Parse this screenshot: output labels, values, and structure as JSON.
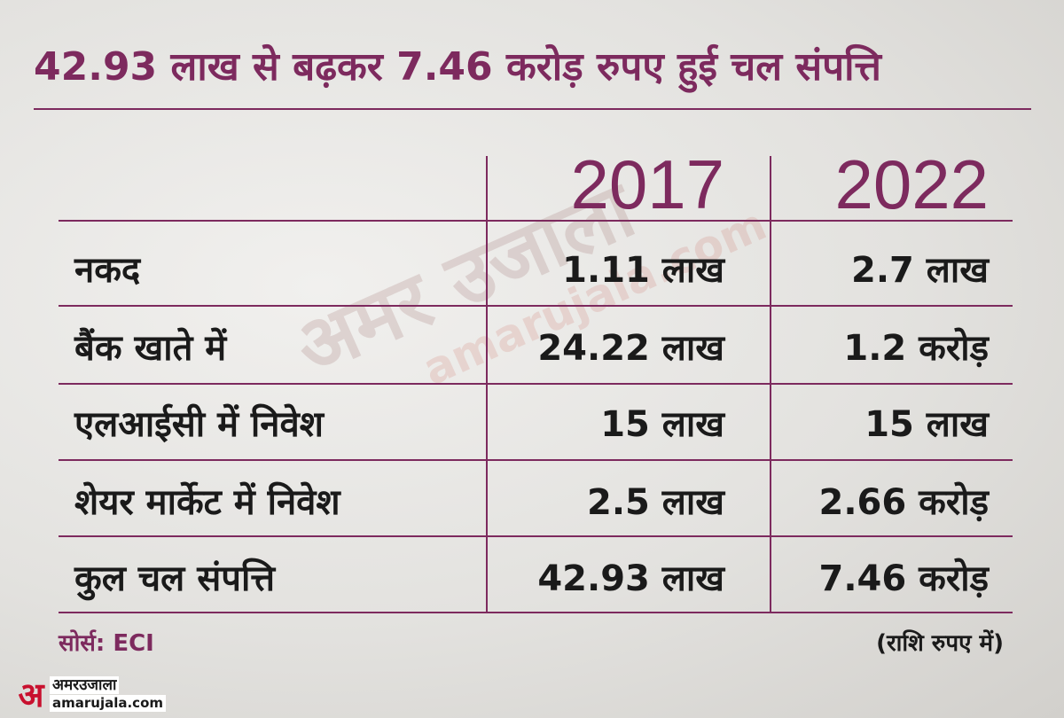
{
  "title": "42.93 लाख से बढ़कर 7.46 करोड़ रुपए हुई चल संपत्ति",
  "colors": {
    "accent": "#7d2a5e",
    "text": "#1a1a1a",
    "logo": "#c8102e"
  },
  "watermark": {
    "line1": "अमर उजाला",
    "line2": "amarujala.com"
  },
  "chart_data": {
    "type": "table",
    "title": "42.93 लाख से बढ़कर 7.46 करोड़ रुपए हुई चल संपत्ति",
    "columns": [
      "2017",
      "2022"
    ],
    "rows": [
      {
        "label": "नकद",
        "v2017": "1.11 लाख",
        "v2022": "2.7 लाख"
      },
      {
        "label": "बैंक खाते में",
        "v2017": "24.22 लाख",
        "v2022": "1.2 करोड़"
      },
      {
        "label": "एलआईसी में निवेश",
        "v2017": "15 लाख",
        "v2022": "15 लाख"
      },
      {
        "label": "शेयर मार्केट में निवेश",
        "v2017": "2.5 लाख",
        "v2022": "2.66 करोड़"
      },
      {
        "label": "कुल चल संपत्ति",
        "v2017": "42.93 लाख",
        "v2022": "7.46 करोड़"
      }
    ]
  },
  "footer": {
    "source": "सोर्स: ECI",
    "note": "(राशि रुपए में)"
  },
  "logo": {
    "mark": "अ",
    "hindi": "अमरउजाला",
    "english": "amarujala.com"
  }
}
